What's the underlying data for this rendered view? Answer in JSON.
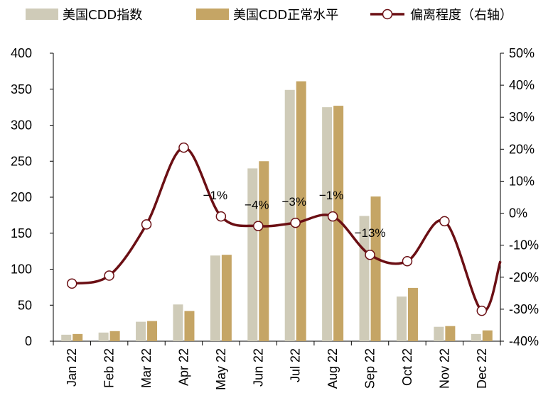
{
  "chart_data": {
    "type": "bar",
    "categories": [
      "Jan 22",
      "Feb 22",
      "Mar 22",
      "Apr 22",
      "May 22",
      "Jun 22",
      "Jul 22",
      "Aug 22",
      "Sep 22",
      "Oct 22",
      "Nov 22",
      "Dec 22"
    ],
    "series": [
      {
        "name": "美国CDD指数",
        "type": "bar",
        "axis": "left",
        "color": "#cfcbb8",
        "values": [
          9,
          12,
          27,
          51,
          119,
          240,
          349,
          325,
          174,
          62,
          20,
          10
        ]
      },
      {
        "name": "美国CDD正常水平",
        "type": "bar",
        "axis": "left",
        "color": "#c5a565",
        "values": [
          10,
          14,
          28,
          42,
          120,
          250,
          361,
          327,
          201,
          74,
          21,
          15
        ]
      },
      {
        "name": "偏离程度（右轴）",
        "type": "line",
        "axis": "right",
        "color": "#6b0f14",
        "values": [
          -22,
          -19.5,
          -3.5,
          20.5,
          -1,
          -4,
          -3,
          -1,
          -13,
          -15,
          -2.5,
          -30.5
        ],
        "labels": [
          "",
          "",
          "",
          "",
          "-1%",
          "-4%",
          "-3%",
          "-1%",
          "-13%",
          "",
          "",
          ""
        ]
      }
    ],
    "y_left": {
      "min": 0,
      "max": 400,
      "ticks": [
        "0",
        "50",
        "100",
        "150",
        "200",
        "250",
        "300",
        "350",
        "400"
      ]
    },
    "y_right": {
      "min": -40,
      "max": 50,
      "ticks": [
        "-40%",
        "-30%",
        "-20%",
        "-10%",
        "0%",
        "10%",
        "20%",
        "30%",
        "40%",
        "50%"
      ]
    },
    "title": "",
    "xlabel": "",
    "ylabel": "",
    "legend": "top",
    "grid": false
  }
}
